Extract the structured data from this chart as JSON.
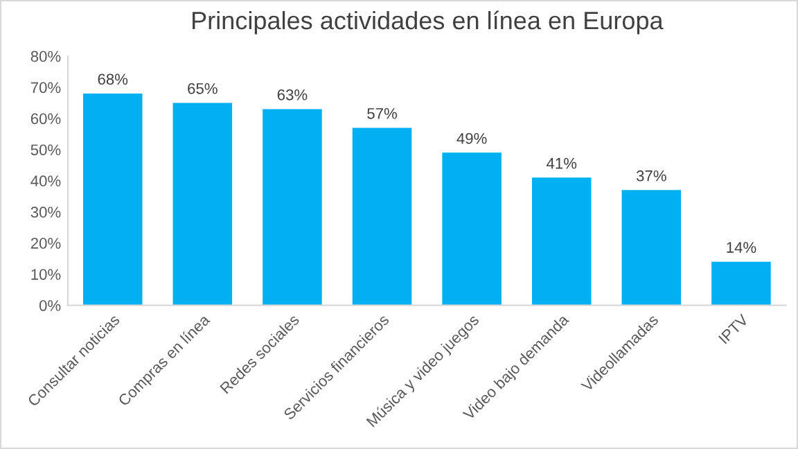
{
  "chart_data": {
    "type": "bar",
    "title": "Principales actividades en línea en Europa",
    "categories": [
      "Consultar noticias",
      "Compras en línea",
      "Redes sociales",
      "Servicios financieros",
      "Música y video juegos",
      "Video bajo demanda",
      "Videollamadas",
      "IPTV"
    ],
    "values": [
      68,
      65,
      63,
      57,
      49,
      41,
      37,
      14
    ],
    "value_labels": [
      "68%",
      "65%",
      "63%",
      "57%",
      "49%",
      "41%",
      "37%",
      "14%"
    ],
    "color": "#00b0f0",
    "ylim": [
      0,
      80
    ],
    "yticks": [
      {
        "value": 0,
        "label": "0%"
      },
      {
        "value": 10,
        "label": "10%"
      },
      {
        "value": 20,
        "label": "20%"
      },
      {
        "value": 30,
        "label": "30%"
      },
      {
        "value": 40,
        "label": "40%"
      },
      {
        "value": 50,
        "label": "50%"
      },
      {
        "value": 60,
        "label": "60%"
      },
      {
        "value": 70,
        "label": "70%"
      },
      {
        "value": 80,
        "label": "80%"
      }
    ],
    "grid": false,
    "legend": false
  }
}
